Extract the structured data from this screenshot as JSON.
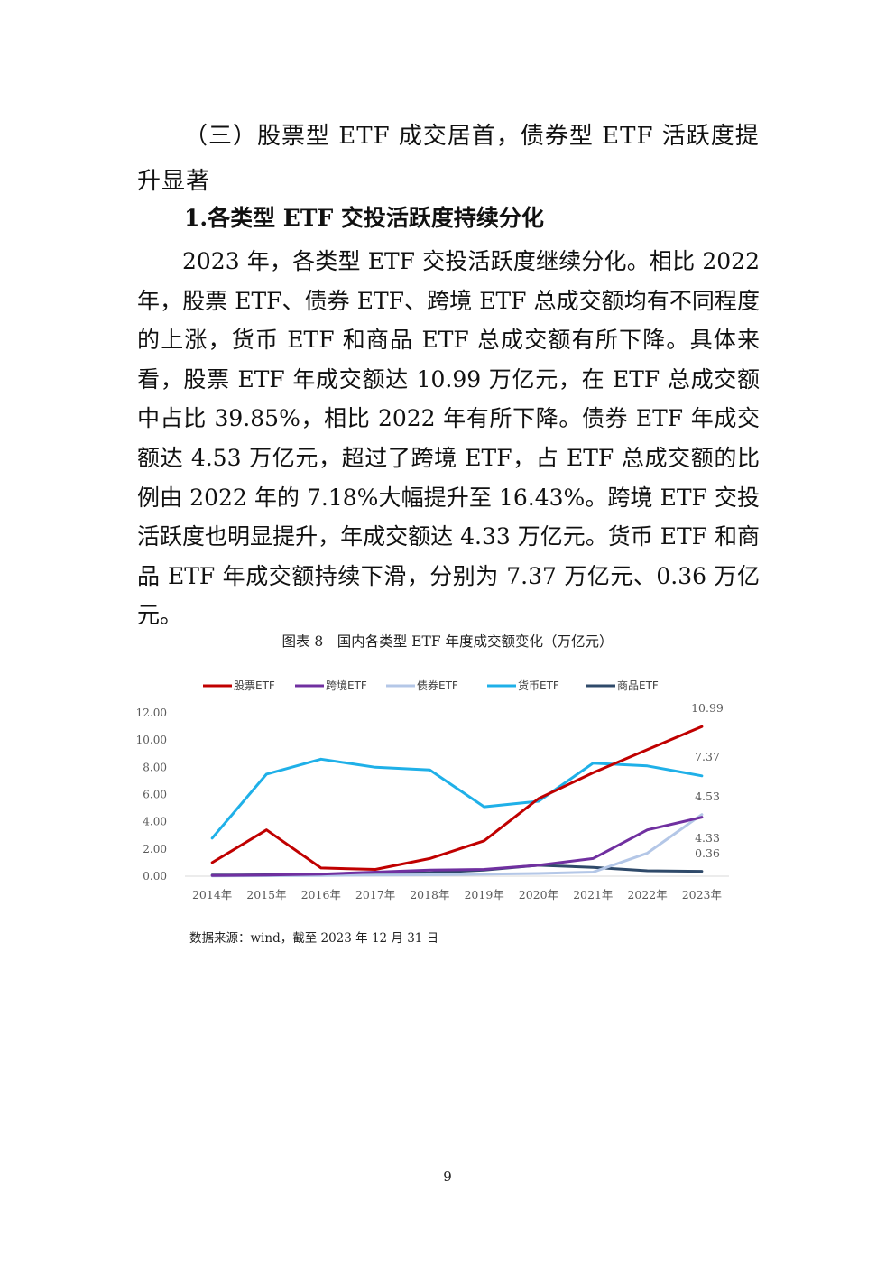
{
  "heading3": "（三）股票型 ETF 成交居首，债券型 ETF 活跃度提升显著",
  "heading4": "1.各类型 ETF 交投活跃度持续分化",
  "paragraph": "2023 年，各类型 ETF 交投活跃度继续分化。相比 2022 年，股票 ETF、债券 ETF、跨境 ETF 总成交额均有不同程度的上涨，货币 ETF 和商品 ETF 总成交额有所下降。具体来看，股票 ETF 年成交额达 10.99 万亿元，在 ETF 总成交额中占比 39.85%，相比 2022 年有所下降。债券 ETF 年成交额达 4.53 万亿元，超过了跨境 ETF，占 ETF 总成交额的比例由 2022 年的 7.18%大幅提升至 16.43%。跨境 ETF 交投活跃度也明显提升，年成交额达 4.33 万亿元。货币 ETF 和商品 ETF 年成交额持续下滑，分别为 7.37 万亿元、0.36 万亿元。",
  "figure_caption": "图表 8　国内各类型 ETF 年度成交额变化（万亿元）",
  "source_note": "数据来源：wind，截至 2023 年 12 月 31 日",
  "page_number": "9",
  "chart_data": {
    "type": "line",
    "title": "",
    "xlabel": "",
    "ylabel": "",
    "ylim": [
      0,
      12
    ],
    "y_ticks": [
      "0.00",
      "2.00",
      "4.00",
      "6.00",
      "8.00",
      "10.00",
      "12.00"
    ],
    "categories": [
      "2014年",
      "2015年",
      "2016年",
      "2017年",
      "2018年",
      "2019年",
      "2020年",
      "2021年",
      "2022年",
      "2023年"
    ],
    "legend_position": "top",
    "grid": false,
    "series": [
      {
        "name": "股票ETF",
        "color": "#c00000",
        "values": [
          1.0,
          3.4,
          0.6,
          0.5,
          1.3,
          2.6,
          5.7,
          7.6,
          9.3,
          10.99
        ]
      },
      {
        "name": "跨境ETF",
        "color": "#7030a0",
        "values": [
          0.05,
          0.08,
          0.15,
          0.3,
          0.45,
          0.5,
          0.8,
          1.3,
          3.4,
          4.33
        ]
      },
      {
        "name": "债券ETF",
        "color": "#b4c7e7",
        "values": [
          0.02,
          0.03,
          0.05,
          0.08,
          0.1,
          0.15,
          0.2,
          0.3,
          1.7,
          4.53
        ]
      },
      {
        "name": "货币ETF",
        "color": "#1fb0e8",
        "values": [
          2.8,
          7.5,
          8.6,
          8.0,
          7.8,
          5.1,
          5.5,
          8.3,
          8.1,
          7.37
        ]
      },
      {
        "name": "商品ETF",
        "color": "#2f4a6a",
        "values": [
          0.08,
          0.1,
          0.1,
          0.25,
          0.25,
          0.45,
          0.8,
          0.65,
          0.4,
          0.36
        ]
      }
    ],
    "end_labels": [
      "10.99",
      "7.37",
      "4.53",
      "4.33",
      "0.36"
    ]
  }
}
